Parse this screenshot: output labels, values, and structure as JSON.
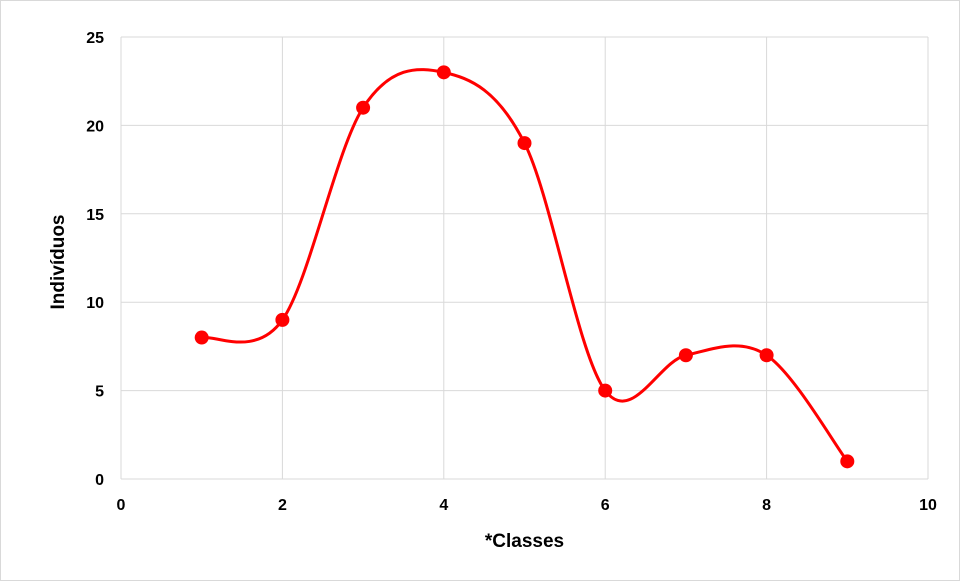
{
  "chart_data": {
    "type": "scatter",
    "style": "smoothed-line-with-markers",
    "title": "",
    "xlabel": "*Classes",
    "ylabel": "Indivíduos",
    "xlim": [
      0,
      10
    ],
    "ylim": [
      0,
      25
    ],
    "x_ticks": [
      "0",
      "2",
      "4",
      "6",
      "8",
      "10"
    ],
    "y_ticks": [
      "0",
      "5",
      "10",
      "15",
      "20",
      "25"
    ],
    "grid": true,
    "legend": "none",
    "series": [
      {
        "color": "#ff0000",
        "points": [
          {
            "x": 1,
            "y": 8
          },
          {
            "x": 2,
            "y": 9
          },
          {
            "x": 3,
            "y": 21
          },
          {
            "x": 4,
            "y": 23
          },
          {
            "x": 5,
            "y": 19
          },
          {
            "x": 6,
            "y": 5
          },
          {
            "x": 7,
            "y": 7
          },
          {
            "x": 8,
            "y": 7
          },
          {
            "x": 9,
            "y": 1
          }
        ]
      }
    ]
  }
}
